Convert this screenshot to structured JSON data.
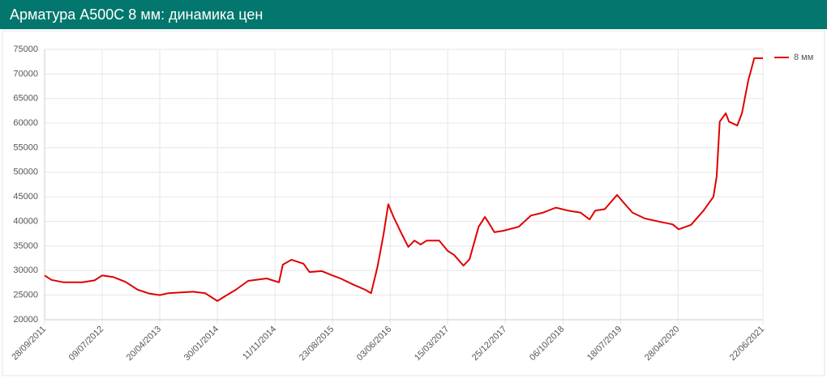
{
  "chart_data": {
    "type": "line",
    "title": "Арматура А500С 8 мм: динамика цен",
    "x": [
      "28/09/2011",
      "01/11/2011",
      "01/01/2012",
      "01/04/2012",
      "01/06/2012",
      "09/07/2012",
      "01/09/2012",
      "01/11/2012",
      "01/01/2013",
      "01/03/2013",
      "20/04/2013",
      "01/06/2013",
      "01/10/2013",
      "01/12/2013",
      "30/01/2014",
      "01/03/2014",
      "01/05/2014",
      "01/07/2014",
      "01/10/2014",
      "01/12/2014",
      "20/12/2014",
      "01/02/2015",
      "01/04/2015",
      "01/05/2015",
      "01/07/2015",
      "23/08/2015",
      "01/10/2015",
      "01/12/2015",
      "01/02/2016",
      "01/03/2016",
      "01/04/2016",
      "01/05/2016",
      "25/05/2016",
      "20/06/2016",
      "01/08/2016",
      "01/09/2016",
      "01/10/2016",
      "01/11/2016",
      "01/12/2016",
      "01/02/2017",
      "15/03/2017",
      "15/04/2017",
      "01/06/2017",
      "01/07/2017",
      "15/08/2017",
      "15/09/2017",
      "01/10/2017",
      "01/11/2017",
      "15/12/2017",
      "01/03/2018",
      "01/05/2018",
      "01/07/2018",
      "01/09/2018",
      "01/11/2018",
      "01/01/2019",
      "15/02/2019",
      "15/03/2019",
      "01/05/2019",
      "01/07/2019",
      "01/08/2019",
      "15/09/2019",
      "15/11/2019",
      "01/02/2020",
      "01/04/2020",
      "01/05/2020",
      "01/07/2020",
      "01/09/2020",
      "20/10/2020",
      "05/11/2020",
      "20/11/2020",
      "20/12/2020",
      "05/01/2021",
      "15/02/2021",
      "10/03/2021",
      "10/04/2021",
      "10/05/2021",
      "22/06/2021"
    ],
    "series": [
      {
        "name": "8 мм",
        "color": "#e00000",
        "values": [
          29000,
          28100,
          27600,
          27600,
          28000,
          29000,
          28700,
          27700,
          26100,
          25300,
          25000,
          25400,
          25700,
          25400,
          23800,
          24600,
          26100,
          27900,
          28400,
          27600,
          31200,
          32200,
          31400,
          29700,
          29900,
          29000,
          28400,
          27200,
          26100,
          25400,
          30700,
          37300,
          43500,
          40900,
          37300,
          34800,
          36100,
          35300,
          36100,
          36100,
          34000,
          33200,
          31000,
          32300,
          38900,
          40900,
          39900,
          37800,
          38100,
          38900,
          41200,
          41800,
          42800,
          42200,
          41800,
          40400,
          42200,
          42500,
          45400,
          43900,
          41800,
          40600,
          39900,
          39400,
          38400,
          39300,
          42200,
          45000,
          49100,
          60300,
          62000,
          60300,
          59500,
          62000,
          68600,
          73200,
          73200
        ]
      }
    ],
    "xlim": [
      "28/09/2011",
      "22/06/2021"
    ],
    "xticks": [
      "28/09/2011",
      "09/07/2012",
      "20/04/2013",
      "30/01/2014",
      "11/11/2014",
      "23/08/2015",
      "03/06/2016",
      "15/03/2017",
      "25/12/2017",
      "06/10/2018",
      "18/07/2019",
      "28/04/2020",
      "22/06/2021"
    ],
    "ylim": [
      20000,
      75000
    ],
    "yticks": [
      20000,
      25000,
      30000,
      35000,
      40000,
      45000,
      50000,
      55000,
      60000,
      65000,
      70000,
      75000
    ],
    "grid": true,
    "legend": "top-right"
  }
}
